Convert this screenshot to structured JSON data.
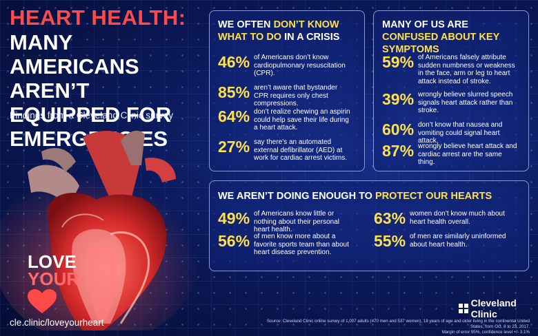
{
  "header": {
    "title_line1": "HEART HEALTH:",
    "title_line2": "MANY AMERICANS AREN’T EQUIPPED FOR EMERGENCIES",
    "subtitle": "Findings from a Cleveland Clinic survey"
  },
  "panel_crisis": {
    "heading_plain": "WE OFTEN ",
    "heading_highlight": "DON’T KNOW WHAT TO DO",
    "heading_plain2": " IN A CRISIS",
    "stats": [
      {
        "pct": "46%",
        "text": "of Americans don’t know cardiopulmonary resuscitation (CPR)."
      },
      {
        "pct": "85%",
        "text": "aren’t aware that bystander CPR requires only chest compressions."
      },
      {
        "pct": "64%",
        "text": "don’t realize chewing an aspirin could help save their life during a heart attack."
      },
      {
        "pct": "27%",
        "text": "say there’s an automated external defibrillator (AED) at work for cardiac arrest victims."
      }
    ]
  },
  "panel_symptoms": {
    "heading_plain": "MANY OF US ARE",
    "heading_highlight": "CONFUSED ABOUT KEY SYMPTOMS",
    "stats": [
      {
        "pct": "59%",
        "text": "of Americans falsely attribute sudden numbness or weakness in the face, arm or leg to heart attack instead of stroke."
      },
      {
        "pct": "39%",
        "text": "wrongly believe slurred speech signals heart attack rather than stroke."
      },
      {
        "pct": "60%",
        "text": "don’t know that nausea and vomiting could signal heart attack."
      },
      {
        "pct": "87%",
        "text": "wrongly believe heart attack and cardiac arrest are the same thing."
      }
    ]
  },
  "panel_protect": {
    "heading_plain": "WE AREN’T DOING ENOUGH TO ",
    "heading_highlight": "PROTECT OUR HEARTS",
    "stats": [
      {
        "pct": "49%",
        "text": "of Americans know little or nothing about their personal heart health."
      },
      {
        "pct": "56%",
        "text": "of men know more about a favorite sports team than about heart disease prevention."
      },
      {
        "pct": "63%",
        "text": "women don’t know much about heart health overall."
      },
      {
        "pct": "55%",
        "text": "of men are similarly uninformed about heart health."
      }
    ]
  },
  "love": {
    "line1": "LOVE",
    "line2": "YOUR"
  },
  "url": "cle.clinic/loveyourheart",
  "logo_name": "Cleveland Clinic",
  "source_line1": "Source: Cleveland Clinic online survey of 1,007 adults (470 men and 537 women), 18 years of age and older living in the continental United States, from Oct. 8 to 23, 2017.",
  "source_line2": "Margin of error 95%, confidence level +/- 3.1%",
  "colors": {
    "accent_red": "#ff4a4a",
    "highlight_yellow": "#ffe04a",
    "background": "#0b1a5c"
  }
}
